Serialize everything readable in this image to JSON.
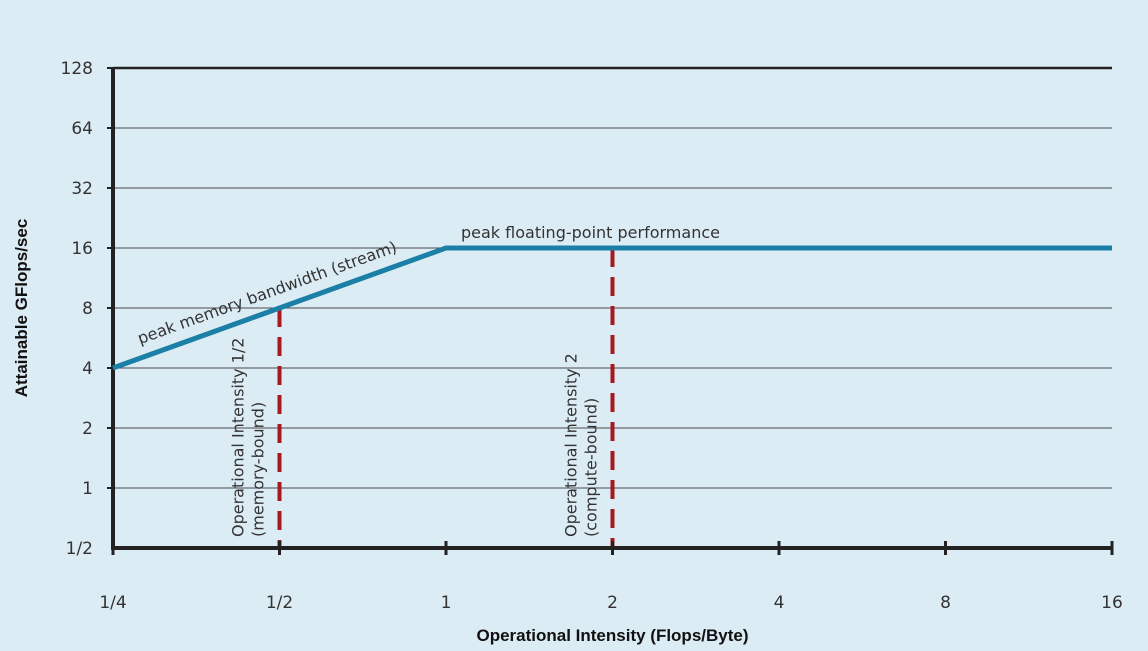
{
  "chart_data": {
    "type": "line",
    "xscale": "log2",
    "yscale": "log2",
    "xlabel": "Operational Intensity (Flops/Byte)",
    "ylabel": "Attainable GFlops/sec",
    "xlim": [
      0.25,
      16
    ],
    "ylim": [
      0.5,
      128
    ],
    "x_ticks": [
      {
        "value": 0.25,
        "label": "1/4"
      },
      {
        "value": 0.5,
        "label": "1/2"
      },
      {
        "value": 1,
        "label": "1"
      },
      {
        "value": 2,
        "label": "2"
      },
      {
        "value": 4,
        "label": "4"
      },
      {
        "value": 8,
        "label": "8"
      },
      {
        "value": 16,
        "label": "16"
      }
    ],
    "y_ticks": [
      {
        "value": 0.5,
        "label": "1/2"
      },
      {
        "value": 1,
        "label": "1"
      },
      {
        "value": 2,
        "label": "2"
      },
      {
        "value": 4,
        "label": "4"
      },
      {
        "value": 8,
        "label": "8"
      },
      {
        "value": 16,
        "label": "16"
      },
      {
        "value": 32,
        "label": "32"
      },
      {
        "value": 64,
        "label": "64"
      },
      {
        "value": 128,
        "label": "128"
      }
    ],
    "grid": "horizontal",
    "roofline": {
      "x": [
        0.25,
        1,
        16
      ],
      "y": [
        4,
        16,
        16
      ],
      "color": "#1b7fa6"
    },
    "annotations": {
      "bandwidth": "peak memory bandwidth (stream)",
      "peak": "peak floating-point performance"
    },
    "markers": [
      {
        "x": 0.5,
        "y_top": 8,
        "line1": "Operational Intensity 1/2",
        "line2": "(memory-bound)"
      },
      {
        "x": 2,
        "y_top": 16,
        "line1": "Operational Intensity 2",
        "line2": "(compute-bound)"
      }
    ],
    "marker_color": "#a8191f",
    "background": "#dcecf5"
  }
}
